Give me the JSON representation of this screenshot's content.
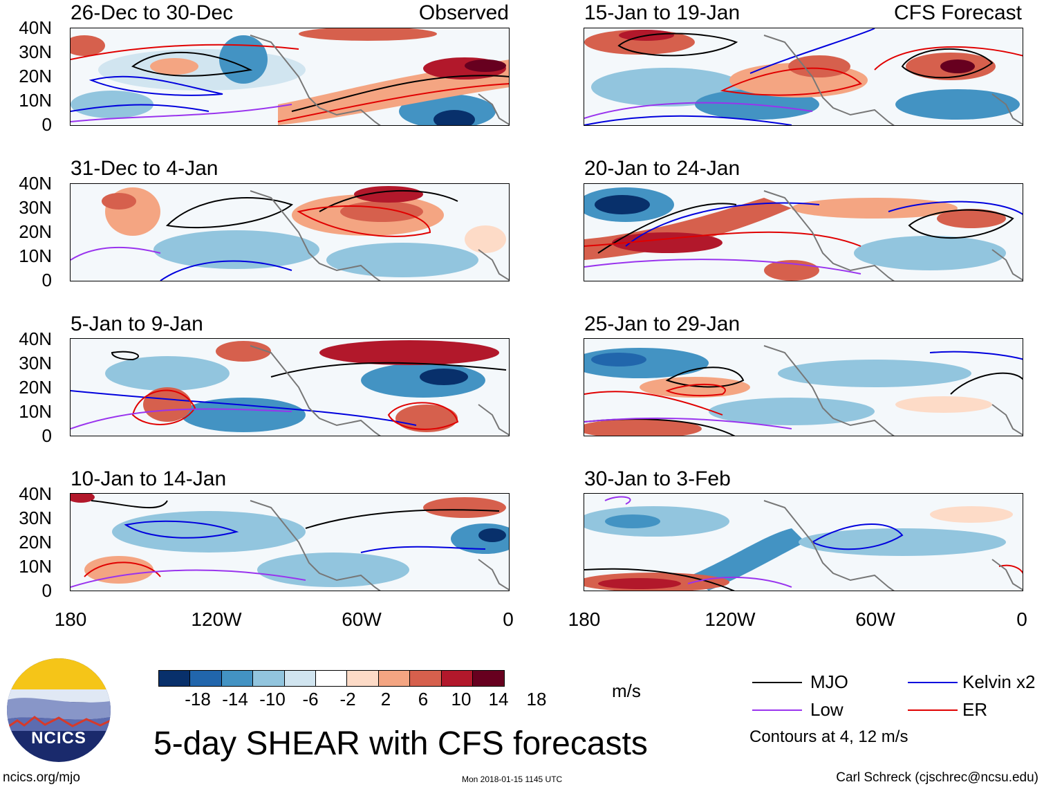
{
  "panels": [
    {
      "title": "26-Dec to 30-Dec",
      "tag": "Observed"
    },
    {
      "title": "31-Dec to 4-Jan",
      "tag": ""
    },
    {
      "title": "5-Jan to 9-Jan",
      "tag": ""
    },
    {
      "title": "10-Jan to 14-Jan",
      "tag": ""
    },
    {
      "title": "15-Jan to 19-Jan",
      "tag": "CFS Forecast"
    },
    {
      "title": "20-Jan to 24-Jan",
      "tag": ""
    },
    {
      "title": "25-Jan to 29-Jan",
      "tag": ""
    },
    {
      "title": "30-Jan to 3-Feb",
      "tag": ""
    }
  ],
  "axes": {
    "lat_labels": [
      "40N",
      "30N",
      "20N",
      "10N",
      "0"
    ],
    "lon_labels": [
      "180",
      "120W",
      "60W",
      "0"
    ]
  },
  "colorbar": {
    "colors": [
      "#08306b",
      "#2166ac",
      "#4393c3",
      "#92c5de",
      "#d1e5f0",
      "#ffffff",
      "#fddbc7",
      "#f4a582",
      "#d6604d",
      "#b2182b",
      "#67001f"
    ],
    "labels": [
      "-18",
      "-14",
      "-10",
      "-6",
      "-2",
      "2",
      "6",
      "10",
      "14",
      "18"
    ],
    "units": "m/s"
  },
  "title": "5-day SHEAR with CFS forecasts",
  "legend": {
    "items": [
      {
        "label": "MJO",
        "color": "#000000"
      },
      {
        "label": "Kelvin x2",
        "color": "#0000dd"
      },
      {
        "label": "Low",
        "color": "#9933ee"
      },
      {
        "label": "ER",
        "color": "#e00000"
      }
    ],
    "note": "Contours at 4, 12 m/s"
  },
  "logo": {
    "text": "NCICS"
  },
  "footer": {
    "left": "ncics.org/mjo",
    "center": "Mon 2018-01-15 1145 UTC",
    "right": "Carl Schreck (cjschrec@ncsu.edu)"
  }
}
